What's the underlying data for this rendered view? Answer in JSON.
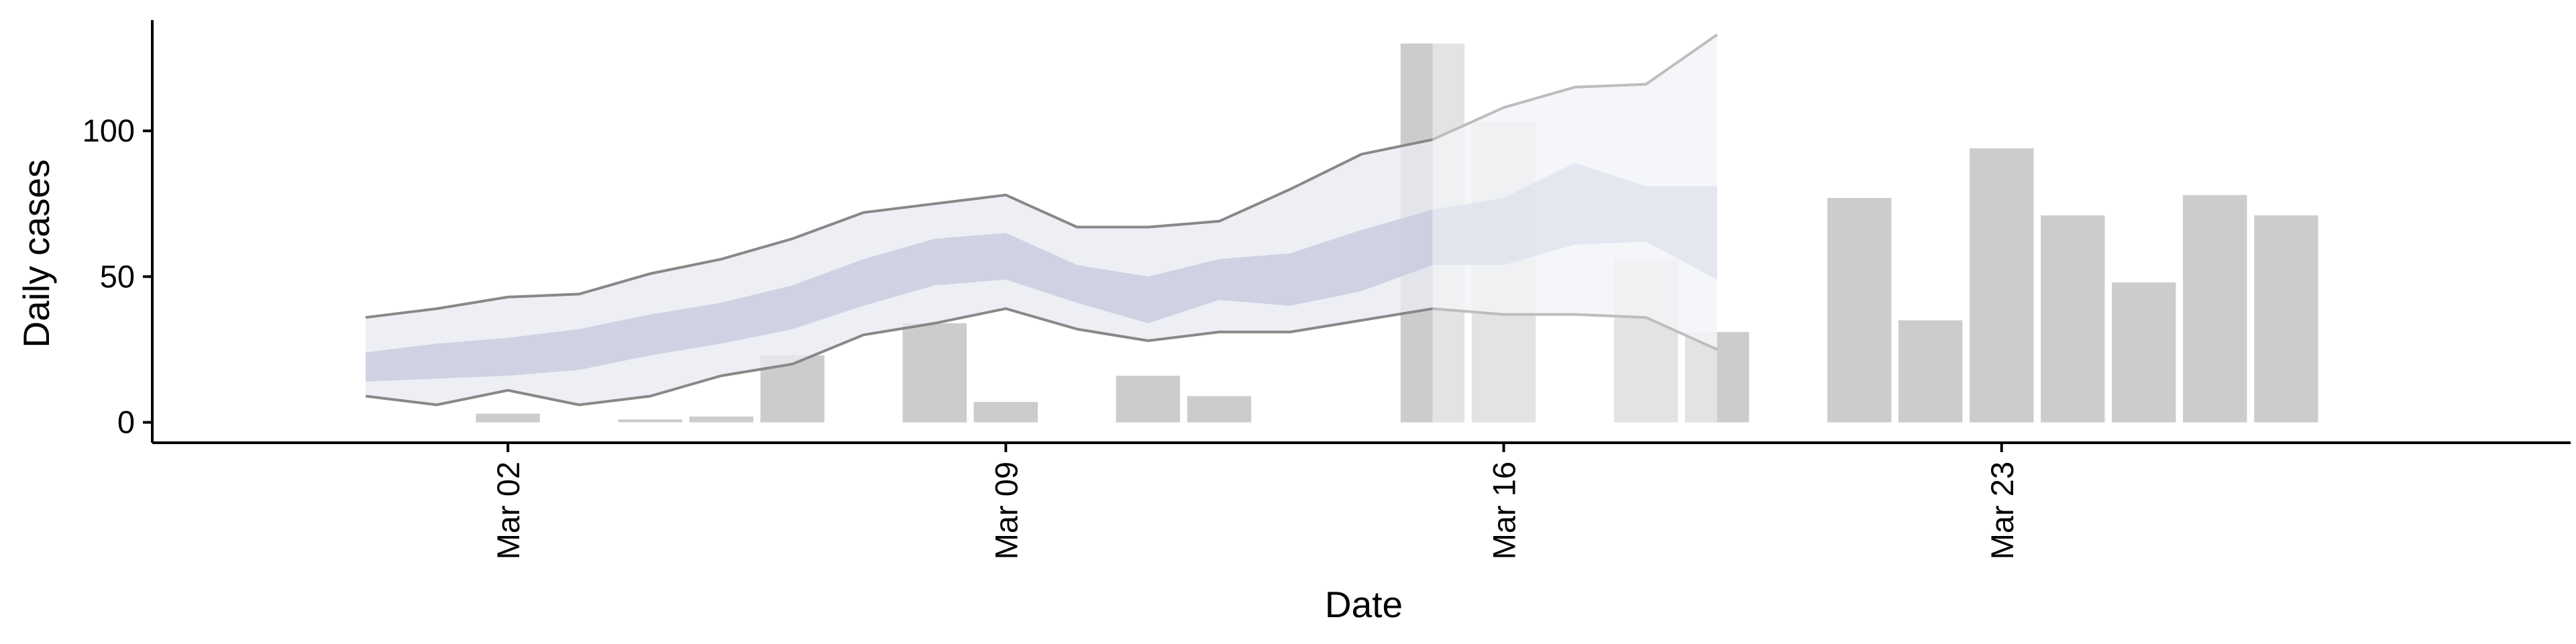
{
  "chart_data": {
    "type": "bar",
    "xlabel": "Date",
    "ylabel": "Daily cases",
    "ylim": [
      -7,
      138
    ],
    "yticks": [
      0,
      50,
      100
    ],
    "xlim": [
      "2020-02-26",
      "2020-03-31"
    ],
    "xticks": [
      {
        "date": "2020-03-02",
        "label": "Mar 02"
      },
      {
        "date": "2020-03-09",
        "label": "Mar 09"
      },
      {
        "date": "2020-03-16",
        "label": "Mar 16"
      },
      {
        "date": "2020-03-23",
        "label": "Mar 23"
      }
    ],
    "grid": false,
    "colors": {
      "bars": "#cccccc",
      "band_outer": "#e9ebf1",
      "band_inner": "#c8cddf",
      "band_lines": "#888888",
      "projection_overlay": "#ffffff",
      "axis": "#000000"
    },
    "bars": [
      {
        "date": "2020-03-02",
        "value": 3
      },
      {
        "date": "2020-03-04",
        "value": 1
      },
      {
        "date": "2020-03-05",
        "value": 2
      },
      {
        "date": "2020-03-06",
        "value": 23
      },
      {
        "date": "2020-03-08",
        "value": 34
      },
      {
        "date": "2020-03-09",
        "value": 7
      },
      {
        "date": "2020-03-11",
        "value": 16
      },
      {
        "date": "2020-03-12",
        "value": 9
      },
      {
        "date": "2020-03-15",
        "value": 130
      },
      {
        "date": "2020-03-16",
        "value": 103
      },
      {
        "date": "2020-03-18",
        "value": 56
      },
      {
        "date": "2020-03-19",
        "value": 31
      },
      {
        "date": "2020-03-21",
        "value": 77
      },
      {
        "date": "2020-03-22",
        "value": 35
      },
      {
        "date": "2020-03-23",
        "value": 94
      },
      {
        "date": "2020-03-24",
        "value": 71
      },
      {
        "date": "2020-03-25",
        "value": 48
      },
      {
        "date": "2020-03-26",
        "value": 78
      },
      {
        "date": "2020-03-27",
        "value": 71
      }
    ],
    "bands": {
      "dates": [
        "2020-02-29",
        "2020-03-01",
        "2020-03-02",
        "2020-03-03",
        "2020-03-04",
        "2020-03-05",
        "2020-03-06",
        "2020-03-07",
        "2020-03-08",
        "2020-03-09",
        "2020-03-10",
        "2020-03-11",
        "2020-03-12",
        "2020-03-13",
        "2020-03-14",
        "2020-03-15",
        "2020-03-16",
        "2020-03-17",
        "2020-03-18",
        "2020-03-19"
      ],
      "outer_lower": [
        9,
        6,
        11,
        6,
        9,
        16,
        20,
        30,
        34,
        39,
        32,
        28,
        31,
        31,
        35,
        39,
        37,
        37,
        36,
        25
      ],
      "outer_upper": [
        36,
        39,
        43,
        44,
        51,
        56,
        63,
        72,
        75,
        78,
        67,
        67,
        69,
        80,
        92,
        97,
        108,
        115,
        116,
        133
      ],
      "inner_lower": [
        14,
        15,
        16,
        18,
        23,
        27,
        32,
        40,
        47,
        49,
        41,
        34,
        42,
        40,
        45,
        54,
        54,
        61,
        62,
        49
      ],
      "inner_upper": [
        24,
        27,
        29,
        32,
        37,
        41,
        47,
        56,
        63,
        65,
        54,
        50,
        56,
        58,
        66,
        73,
        77,
        89,
        81,
        81
      ],
      "projection_start": "2020-03-15"
    }
  }
}
